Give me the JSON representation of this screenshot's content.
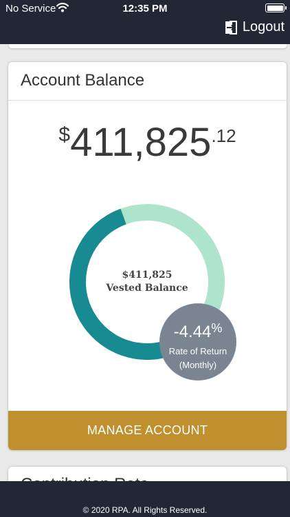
{
  "status_bar": {
    "carrier": "No Service",
    "time": "12:35 PM",
    "icons": [
      "wifi-icon",
      "battery-icon"
    ]
  },
  "header": {
    "logout_label": "Logout",
    "logout_icon": "logout-icon"
  },
  "account_card": {
    "title": "Account Balance",
    "balance": {
      "currency_symbol": "$",
      "whole": "411,825",
      "cents": ".12"
    },
    "donut": {
      "center_amount": "$411,825",
      "center_label": "Vested Balance",
      "segments": [
        {
          "color": "#aee3cc",
          "fraction": 0.37
        },
        {
          "color": "#1b4a94",
          "fraction": 0.062
        },
        {
          "color": "#23dfd6",
          "fraction": 0.025
        },
        {
          "color": "#178a92",
          "fraction": 0.543
        }
      ]
    },
    "rate_of_return": {
      "value": "-4.44",
      "percent": "%",
      "label_line1": "Rate of Return",
      "label_line2": "(Monthly)"
    },
    "manage_button_label": "MANAGE ACCOUNT"
  },
  "next_card": {
    "title": "Contribution Rate"
  },
  "footer": {
    "copyright": "© 2020 RPA. All Rights Reserved."
  },
  "colors": {
    "header_bg": "#212735",
    "button_bg": "#c0902f",
    "ror_bubble": "#7a8591"
  }
}
